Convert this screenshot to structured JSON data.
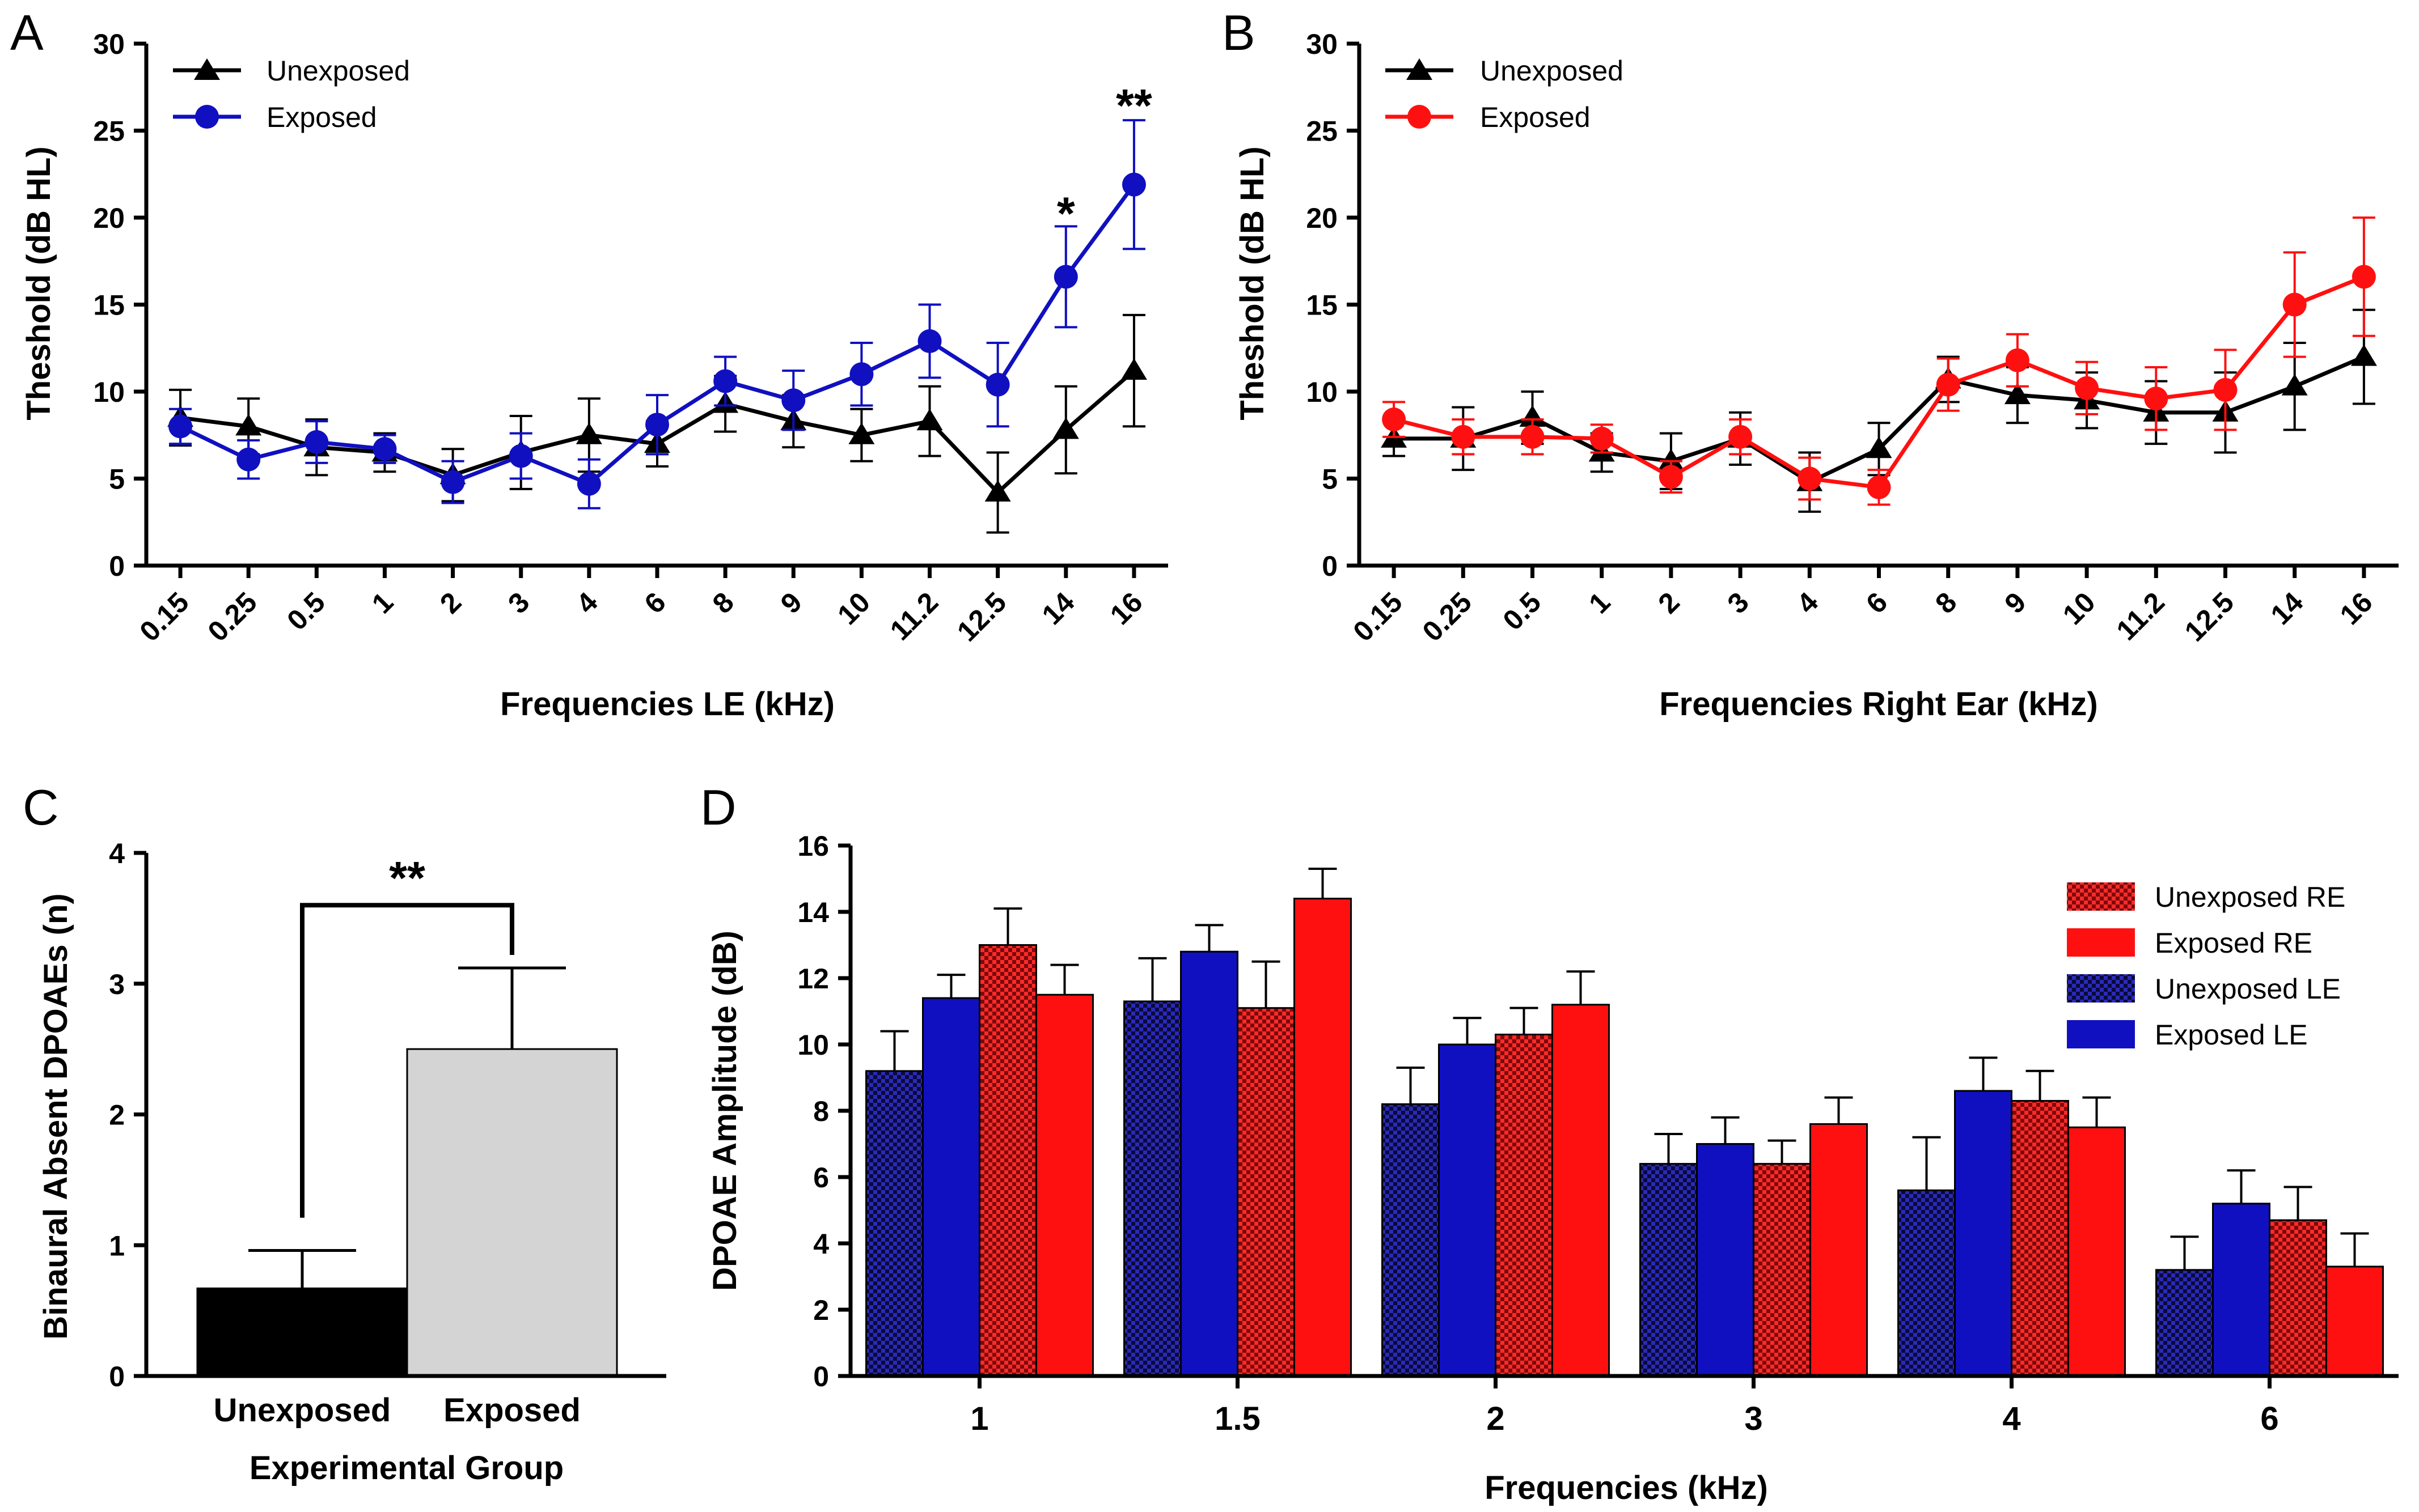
{
  "colors": {
    "black": "#000000",
    "blue": "#1010c0",
    "red": "#ff1010",
    "gray": "#d4d4d4",
    "navy_check": "#14147e",
    "red_check": "#c81010"
  },
  "chart_data": [
    {
      "panel": "A",
      "type": "line",
      "title": "",
      "xlabel": "Frequencies LE (kHz)",
      "ylabel": "Theshold (dB HL)",
      "ylim": [
        0,
        30
      ],
      "yticks": [
        0,
        5,
        10,
        15,
        20,
        25,
        30
      ],
      "categories": [
        "0.15",
        "0.25",
        "0.5",
        "1",
        "2",
        "3",
        "4",
        "6",
        "8",
        "9",
        "10",
        "11.2",
        "12.5",
        "14",
        "16"
      ],
      "legend_position": "top-left",
      "series": [
        {
          "name": "Unexposed",
          "marker": "triangle",
          "color": "#000000",
          "values": [
            8.5,
            8.0,
            6.8,
            6.5,
            5.2,
            6.5,
            7.5,
            7.0,
            9.3,
            8.3,
            7.5,
            8.3,
            4.2,
            7.8,
            11.2
          ],
          "errors": [
            1.6,
            1.6,
            1.6,
            1.1,
            1.5,
            2.1,
            2.1,
            1.3,
            1.6,
            1.5,
            1.5,
            2.0,
            2.3,
            2.5,
            3.2
          ]
        },
        {
          "name": "Exposed",
          "marker": "circle",
          "color": "#1010c0",
          "values": [
            8.0,
            6.1,
            7.1,
            6.7,
            4.8,
            6.3,
            4.7,
            8.1,
            10.6,
            9.5,
            11.0,
            12.9,
            10.4,
            16.6,
            21.9
          ],
          "errors": [
            1.0,
            1.1,
            1.2,
            0.8,
            1.2,
            1.3,
            1.4,
            1.7,
            1.4,
            1.7,
            1.8,
            2.1,
            2.4,
            2.9,
            3.7
          ]
        }
      ],
      "annotations": [
        {
          "text": "*",
          "category": "14",
          "y": 20.3
        },
        {
          "text": "**",
          "category": "16",
          "y": 26.5
        }
      ]
    },
    {
      "panel": "B",
      "type": "line",
      "title": "",
      "xlabel": "Frequencies Right Ear (kHz)",
      "ylabel": "Theshold (dB HL)",
      "ylim": [
        0,
        30
      ],
      "yticks": [
        0,
        5,
        10,
        15,
        20,
        25,
        30
      ],
      "categories": [
        "0.15",
        "0.25",
        "0.5",
        "1",
        "2",
        "3",
        "4",
        "6",
        "8",
        "9",
        "10",
        "11.2",
        "12.5",
        "14",
        "16"
      ],
      "legend_position": "top-left",
      "series": [
        {
          "name": "Unexposed",
          "marker": "triangle",
          "color": "#000000",
          "values": [
            7.3,
            7.3,
            8.5,
            6.5,
            6.0,
            7.3,
            4.8,
            6.7,
            10.7,
            9.8,
            9.5,
            8.8,
            8.8,
            10.3,
            12.0
          ],
          "errors": [
            1.0,
            1.8,
            1.5,
            1.1,
            1.6,
            1.5,
            1.7,
            1.5,
            1.3,
            1.6,
            1.6,
            1.8,
            2.3,
            2.5,
            2.7
          ]
        },
        {
          "name": "Exposed",
          "marker": "circle",
          "color": "#ff1010",
          "values": [
            8.4,
            7.4,
            7.4,
            7.3,
            5.1,
            7.4,
            5.0,
            4.5,
            10.4,
            11.8,
            10.2,
            9.6,
            10.1,
            15.0,
            16.6
          ],
          "errors": [
            1.0,
            1.0,
            1.0,
            0.8,
            0.9,
            1.0,
            1.2,
            1.0,
            1.5,
            1.5,
            1.5,
            1.8,
            2.3,
            3.0,
            3.4
          ]
        }
      ]
    },
    {
      "panel": "C",
      "type": "bar",
      "title": "",
      "xlabel": "Experimental Group",
      "ylabel": "Binaural Absent DPOAEs (n)",
      "ylim": [
        0,
        4
      ],
      "yticks": [
        0,
        1,
        2,
        3,
        4
      ],
      "categories": [
        "Unexposed",
        "Exposed"
      ],
      "values": [
        0.67,
        2.5
      ],
      "errors": [
        0.29,
        0.62
      ],
      "bar_colors": [
        "#000000",
        "#d4d4d4"
      ],
      "annotations": [
        {
          "text": "**",
          "type": "bracket",
          "from": "Unexposed",
          "to": "Exposed",
          "y": 3.6
        }
      ]
    },
    {
      "panel": "D",
      "type": "bar",
      "title": "",
      "xlabel": "Frequencies (kHz)",
      "ylabel": "DPOAE Amplitude (dB)",
      "ylim": [
        0,
        16
      ],
      "yticks": [
        0,
        2,
        4,
        6,
        8,
        10,
        12,
        14,
        16
      ],
      "categories": [
        "1",
        "1.5",
        "2",
        "3",
        "4",
        "6"
      ],
      "legend_position": "top-right",
      "legend_order": [
        "Unexposed RE",
        "Exposed RE",
        "Unexposed LE",
        "Exposed LE"
      ],
      "series": [
        {
          "name": "Unexposed LE",
          "fill": "checkered",
          "color": "#14147e",
          "values": [
            9.2,
            11.3,
            8.2,
            6.4,
            5.6,
            3.2
          ],
          "errors": [
            1.2,
            1.3,
            1.1,
            0.9,
            1.6,
            1.0
          ]
        },
        {
          "name": "Exposed LE",
          "fill": "solid",
          "color": "#1010c0",
          "values": [
            11.4,
            12.8,
            10.0,
            7.0,
            8.6,
            5.2
          ],
          "errors": [
            0.7,
            0.8,
            0.8,
            0.8,
            1.0,
            1.0
          ]
        },
        {
          "name": "Unexposed RE",
          "fill": "checkered",
          "color": "#c81010",
          "values": [
            13.0,
            11.1,
            10.3,
            6.4,
            8.3,
            4.7
          ],
          "errors": [
            1.1,
            1.4,
            0.8,
            0.7,
            0.9,
            1.0
          ]
        },
        {
          "name": "Exposed RE",
          "fill": "solid",
          "color": "#ff1010",
          "values": [
            11.5,
            14.4,
            11.2,
            7.6,
            7.5,
            3.3
          ],
          "errors": [
            0.9,
            0.9,
            1.0,
            0.8,
            0.9,
            1.0
          ]
        }
      ]
    }
  ]
}
